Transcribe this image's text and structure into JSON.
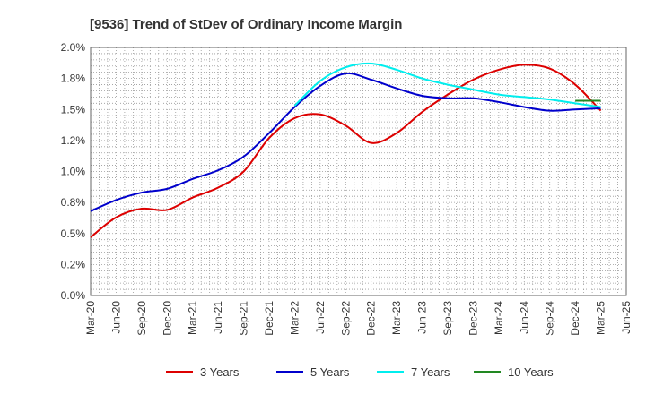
{
  "chart_data": {
    "type": "line",
    "title": "[9536]  Trend of StDev of Ordinary Income Margin",
    "xlabel": "",
    "ylabel": "",
    "ylim": [
      0,
      2.0
    ],
    "y_ticks": [
      0,
      0.25,
      0.5,
      0.75,
      1.0,
      1.25,
      1.5,
      1.75,
      2.0
    ],
    "y_tick_labels": [
      "0.0%",
      "0.2%",
      "0.5%",
      "0.8%",
      "1.0%",
      "1.2%",
      "1.5%",
      "1.8%",
      "2.0%"
    ],
    "x_tick_labels": [
      "Mar-20",
      "Jun-20",
      "Sep-20",
      "Dec-20",
      "Mar-21",
      "Jun-21",
      "Sep-21",
      "Dec-21",
      "Mar-22",
      "Jun-22",
      "Sep-22",
      "Dec-22",
      "Mar-23",
      "Jun-23",
      "Sep-23",
      "Dec-23",
      "Mar-24",
      "Jun-24",
      "Sep-24",
      "Dec-24",
      "Mar-25",
      "Jun-25"
    ],
    "grid": true,
    "legend_position": "bottom",
    "series": [
      {
        "name": "3 Years",
        "color": "#dd0000",
        "x": [
          "Mar-20",
          "Jun-20",
          "Sep-20",
          "Dec-20",
          "Mar-21",
          "Jun-21",
          "Sep-21",
          "Dec-21",
          "Mar-22",
          "Jun-22",
          "Sep-22",
          "Dec-22",
          "Mar-23",
          "Jun-23",
          "Sep-23",
          "Dec-23",
          "Mar-24",
          "Jun-24",
          "Sep-24",
          "Dec-24",
          "Mar-25"
        ],
        "values": [
          0.47,
          0.63,
          0.7,
          0.69,
          0.79,
          0.87,
          1.0,
          1.27,
          1.43,
          1.46,
          1.37,
          1.23,
          1.31,
          1.48,
          1.62,
          1.74,
          1.82,
          1.86,
          1.83,
          1.7,
          1.49
        ]
      },
      {
        "name": "5 Years",
        "color": "#0000cc",
        "x": [
          "Mar-20",
          "Jun-20",
          "Sep-20",
          "Dec-20",
          "Mar-21",
          "Jun-21",
          "Sep-21",
          "Dec-21",
          "Mar-22",
          "Jun-22",
          "Sep-22",
          "Dec-22",
          "Mar-23",
          "Jun-23",
          "Sep-23",
          "Dec-23",
          "Mar-24",
          "Jun-24",
          "Sep-24",
          "Dec-24",
          "Mar-25"
        ],
        "values": [
          0.68,
          0.77,
          0.83,
          0.86,
          0.94,
          1.01,
          1.12,
          1.31,
          1.52,
          1.69,
          1.79,
          1.74,
          1.67,
          1.61,
          1.59,
          1.59,
          1.56,
          1.52,
          1.49,
          1.5,
          1.51
        ]
      },
      {
        "name": "7 Years",
        "color": "#00eeee",
        "x": [
          "Mar-22",
          "Jun-22",
          "Sep-22",
          "Dec-22",
          "Mar-23",
          "Jun-23",
          "Sep-23",
          "Dec-23",
          "Mar-24",
          "Jun-24",
          "Sep-24",
          "Dec-24",
          "Mar-25"
        ],
        "values": [
          1.53,
          1.73,
          1.84,
          1.87,
          1.82,
          1.75,
          1.7,
          1.66,
          1.62,
          1.6,
          1.58,
          1.55,
          1.52
        ]
      },
      {
        "name": "10 Years",
        "color": "#228822",
        "x": [
          "Dec-24",
          "Mar-25"
        ],
        "values": [
          1.57,
          1.57
        ]
      }
    ]
  }
}
